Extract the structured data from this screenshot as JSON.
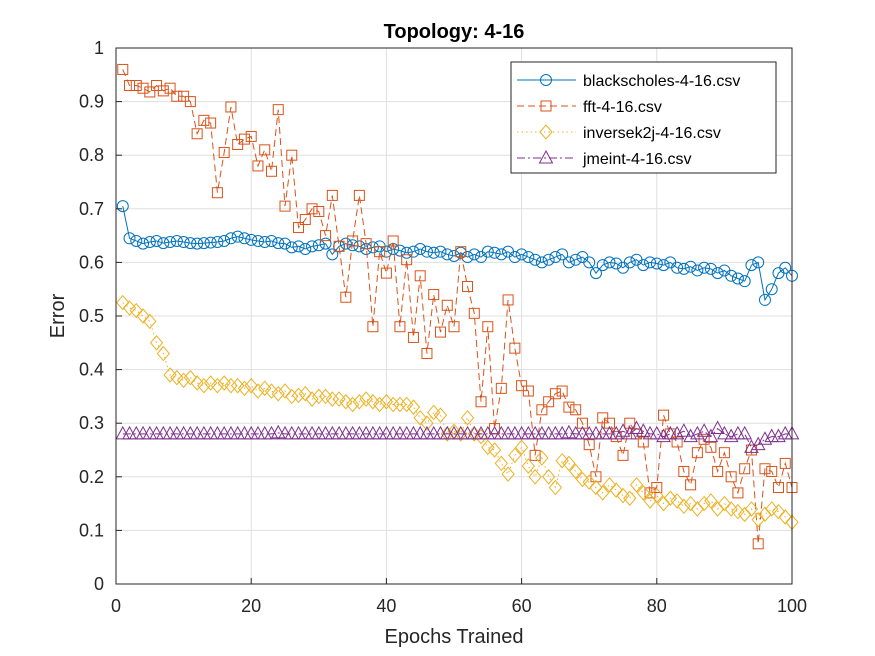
{
  "chart_data": {
    "type": "line",
    "title": "Topology: 4-16",
    "xlabel": "Epochs Trained",
    "ylabel": "Error",
    "xlim": [
      0,
      100
    ],
    "ylim": [
      0,
      1
    ],
    "xticks": [
      "0",
      "20",
      "40",
      "60",
      "80",
      "100"
    ],
    "yticks": [
      "0",
      "0.1",
      "0.2",
      "0.3",
      "0.4",
      "0.5",
      "0.6",
      "0.7",
      "0.8",
      "0.9",
      "1"
    ],
    "grid": true,
    "legend_position": "top-right",
    "x": [
      1,
      2,
      3,
      4,
      5,
      6,
      7,
      8,
      9,
      10,
      11,
      12,
      13,
      14,
      15,
      16,
      17,
      18,
      19,
      20,
      21,
      22,
      23,
      24,
      25,
      26,
      27,
      28,
      29,
      30,
      31,
      32,
      33,
      34,
      35,
      36,
      37,
      38,
      39,
      40,
      41,
      42,
      43,
      44,
      45,
      46,
      47,
      48,
      49,
      50,
      51,
      52,
      53,
      54,
      55,
      56,
      57,
      58,
      59,
      60,
      61,
      62,
      63,
      64,
      65,
      66,
      67,
      68,
      69,
      70,
      71,
      72,
      73,
      74,
      75,
      76,
      77,
      78,
      79,
      80,
      81,
      82,
      83,
      84,
      85,
      86,
      87,
      88,
      89,
      90,
      91,
      92,
      93,
      94,
      95,
      96,
      97,
      98,
      99,
      100
    ],
    "series": [
      {
        "name": "blackscholes-4-16.csv",
        "color": "#0072BD",
        "marker": "circle",
        "line": "solid",
        "values": [
          0.705,
          0.645,
          0.64,
          0.635,
          0.638,
          0.64,
          0.636,
          0.638,
          0.64,
          0.638,
          0.636,
          0.635,
          0.636,
          0.637,
          0.638,
          0.64,
          0.645,
          0.648,
          0.645,
          0.642,
          0.64,
          0.638,
          0.64,
          0.636,
          0.635,
          0.628,
          0.63,
          0.625,
          0.63,
          0.632,
          0.635,
          0.615,
          0.63,
          0.635,
          0.632,
          0.63,
          0.625,
          0.628,
          0.63,
          0.62,
          0.625,
          0.622,
          0.618,
          0.62,
          0.625,
          0.62,
          0.618,
          0.62,
          0.615,
          0.612,
          0.618,
          0.61,
          0.615,
          0.61,
          0.62,
          0.618,
          0.615,
          0.62,
          0.61,
          0.615,
          0.61,
          0.605,
          0.6,
          0.605,
          0.61,
          0.615,
          0.6,
          0.605,
          0.61,
          0.6,
          0.58,
          0.595,
          0.6,
          0.598,
          0.59,
          0.6,
          0.605,
          0.595,
          0.6,
          0.598,
          0.595,
          0.6,
          0.59,
          0.588,
          0.592,
          0.585,
          0.59,
          0.588,
          0.58,
          0.585,
          0.575,
          0.57,
          0.565,
          0.595,
          0.6,
          0.53,
          0.55,
          0.58,
          0.59,
          0.575
        ]
      },
      {
        "name": "fft-4-16.csv",
        "color": "#D95319",
        "marker": "square",
        "line": "dashed",
        "values": [
          0.96,
          0.93,
          0.93,
          0.925,
          0.918,
          0.93,
          0.92,
          0.925,
          0.91,
          0.91,
          0.9,
          0.84,
          0.865,
          0.86,
          0.73,
          0.805,
          0.89,
          0.82,
          0.83,
          0.835,
          0.78,
          0.81,
          0.77,
          0.885,
          0.705,
          0.8,
          0.665,
          0.68,
          0.7,
          0.695,
          0.65,
          0.725,
          0.63,
          0.535,
          0.64,
          0.725,
          0.635,
          0.48,
          0.62,
          0.58,
          0.64,
          0.48,
          0.605,
          0.46,
          0.575,
          0.43,
          0.54,
          0.47,
          0.52,
          0.48,
          0.62,
          0.555,
          0.505,
          0.34,
          0.48,
          0.29,
          0.365,
          0.53,
          0.44,
          0.37,
          0.36,
          0.24,
          0.325,
          0.34,
          0.355,
          0.36,
          0.33,
          0.325,
          0.3,
          0.26,
          0.2,
          0.31,
          0.3,
          0.275,
          0.24,
          0.3,
          0.28,
          0.265,
          0.17,
          0.18,
          0.315,
          0.28,
          0.265,
          0.21,
          0.185,
          0.245,
          0.27,
          0.255,
          0.21,
          0.245,
          0.2,
          0.17,
          0.215,
          0.25,
          0.075,
          0.215,
          0.21,
          0.18,
          0.225,
          0.18
        ]
      },
      {
        "name": "inversek2j-4-16.csv",
        "color": "#EDB120",
        "marker": "diamond",
        "line": "dotted",
        "values": [
          0.525,
          0.515,
          0.51,
          0.5,
          0.49,
          0.45,
          0.43,
          0.39,
          0.385,
          0.38,
          0.385,
          0.375,
          0.37,
          0.375,
          0.37,
          0.375,
          0.37,
          0.37,
          0.365,
          0.37,
          0.36,
          0.365,
          0.36,
          0.355,
          0.36,
          0.35,
          0.352,
          0.355,
          0.345,
          0.35,
          0.35,
          0.345,
          0.345,
          0.34,
          0.335,
          0.34,
          0.345,
          0.34,
          0.335,
          0.34,
          0.335,
          0.335,
          0.335,
          0.33,
          0.31,
          0.3,
          0.32,
          0.315,
          0.28,
          0.285,
          0.28,
          0.31,
          0.28,
          0.275,
          0.255,
          0.25,
          0.225,
          0.205,
          0.24,
          0.255,
          0.22,
          0.2,
          0.235,
          0.2,
          0.18,
          0.23,
          0.225,
          0.21,
          0.195,
          0.19,
          0.18,
          0.17,
          0.185,
          0.175,
          0.165,
          0.16,
          0.185,
          0.17,
          0.155,
          0.165,
          0.15,
          0.16,
          0.155,
          0.145,
          0.15,
          0.14,
          0.15,
          0.155,
          0.14,
          0.15,
          0.14,
          0.135,
          0.13,
          0.14,
          0.12,
          0.13,
          0.14,
          0.135,
          0.125,
          0.115
        ]
      },
      {
        "name": "jmeint-4-16.csv",
        "color": "#7E2F8E",
        "marker": "triangle",
        "line": "dashdot",
        "values": [
          0.28,
          0.28,
          0.28,
          0.28,
          0.28,
          0.28,
          0.28,
          0.28,
          0.28,
          0.28,
          0.28,
          0.28,
          0.28,
          0.28,
          0.28,
          0.28,
          0.28,
          0.28,
          0.28,
          0.28,
          0.28,
          0.28,
          0.28,
          0.282,
          0.28,
          0.28,
          0.28,
          0.28,
          0.28,
          0.28,
          0.28,
          0.28,
          0.28,
          0.28,
          0.28,
          0.28,
          0.28,
          0.28,
          0.28,
          0.28,
          0.28,
          0.28,
          0.28,
          0.28,
          0.28,
          0.28,
          0.28,
          0.28,
          0.28,
          0.28,
          0.28,
          0.28,
          0.28,
          0.28,
          0.28,
          0.28,
          0.28,
          0.28,
          0.28,
          0.28,
          0.28,
          0.28,
          0.28,
          0.28,
          0.28,
          0.28,
          0.282,
          0.28,
          0.28,
          0.28,
          0.28,
          0.28,
          0.28,
          0.28,
          0.285,
          0.28,
          0.29,
          0.285,
          0.28,
          0.28,
          0.275,
          0.28,
          0.28,
          0.285,
          0.275,
          0.28,
          0.285,
          0.275,
          0.29,
          0.28,
          0.275,
          0.28,
          0.28,
          0.255,
          0.26,
          0.27,
          0.275,
          0.275,
          0.28,
          0.28
        ]
      }
    ]
  }
}
